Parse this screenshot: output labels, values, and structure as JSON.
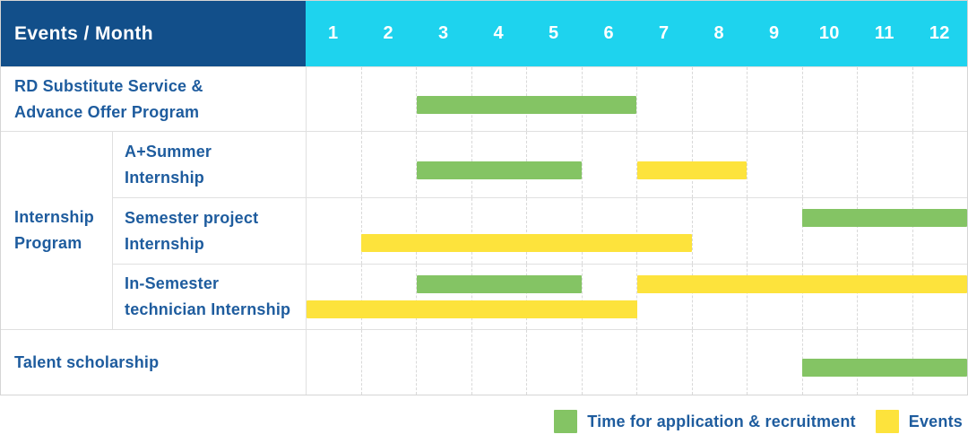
{
  "colors": {
    "header_bg": "#124F8A",
    "months_bg": "#1ED3EE",
    "label_text": "#1E5C9E",
    "green": "#84C464",
    "yellow": "#FDE33C",
    "grid": "#E0E0E0",
    "grid_dash": "#D9D9D9"
  },
  "header": {
    "title": "Events / Month"
  },
  "labels": {
    "rd": [
      "RD Substitute Service &",
      "Advance Offer Program"
    ],
    "internship_group": [
      "Internship",
      "Program"
    ],
    "summer": [
      "A+Summer",
      "Internship"
    ],
    "semester": [
      "Semester project",
      "Internship"
    ],
    "in_semester": [
      "In-Semester",
      "technician Internship"
    ],
    "talent": [
      "Talent scholarship"
    ]
  },
  "legend": {
    "items": [
      {
        "label": "Time for application & recruitment",
        "series": "green"
      },
      {
        "label": "Events",
        "series": "yellow"
      }
    ]
  },
  "chart_data": {
    "type": "bar",
    "subtype": "gantt",
    "title": "Events / Month",
    "xlabel": "Month",
    "x_axis": {
      "ticks": [
        "1",
        "2",
        "3",
        "4",
        "5",
        "6",
        "7",
        "8",
        "9",
        "10",
        "11",
        "12"
      ],
      "range": [
        1,
        12
      ]
    },
    "grid": true,
    "legend": [
      "Time for application & recruitment",
      "Events"
    ],
    "legend_position": "bottom-right",
    "series_colors": {
      "Time for application & recruitment": "green",
      "Events": "yellow"
    },
    "rows": [
      {
        "category": "RD Substitute Service & Advance Offer Program",
        "lanes": 1,
        "bars": [
          {
            "series": "Time for application & recruitment",
            "start_month": 3,
            "end_month": 6,
            "lane": 0
          }
        ]
      },
      {
        "category": "A+Summer Internship",
        "group": "Internship Program",
        "lanes": 1,
        "bars": [
          {
            "series": "Time for application & recruitment",
            "start_month": 3,
            "end_month": 5,
            "lane": 0
          },
          {
            "series": "Events",
            "start_month": 7,
            "end_month": 8,
            "lane": 0
          }
        ]
      },
      {
        "category": "Semester project Internship",
        "group": "Internship Program",
        "lanes": 2,
        "bars": [
          {
            "series": "Time for application & recruitment",
            "start_month": 10,
            "end_month": 12,
            "lane": 0
          },
          {
            "series": "Events",
            "start_month": 2,
            "end_month": 7,
            "lane": 1
          }
        ]
      },
      {
        "category": "In-Semester technician Internship",
        "group": "Internship Program",
        "lanes": 2,
        "bars": [
          {
            "series": "Time for application & recruitment",
            "start_month": 3,
            "end_month": 5,
            "lane": 0
          },
          {
            "series": "Events",
            "start_month": 7,
            "end_month": 12,
            "lane": 0
          },
          {
            "series": "Events",
            "start_month": 1,
            "end_month": 6,
            "lane": 1
          }
        ]
      },
      {
        "category": "Talent scholarship",
        "lanes": 1,
        "bars": [
          {
            "series": "Time for application & recruitment",
            "start_month": 10,
            "end_month": 12,
            "lane": 0
          }
        ]
      }
    ]
  }
}
